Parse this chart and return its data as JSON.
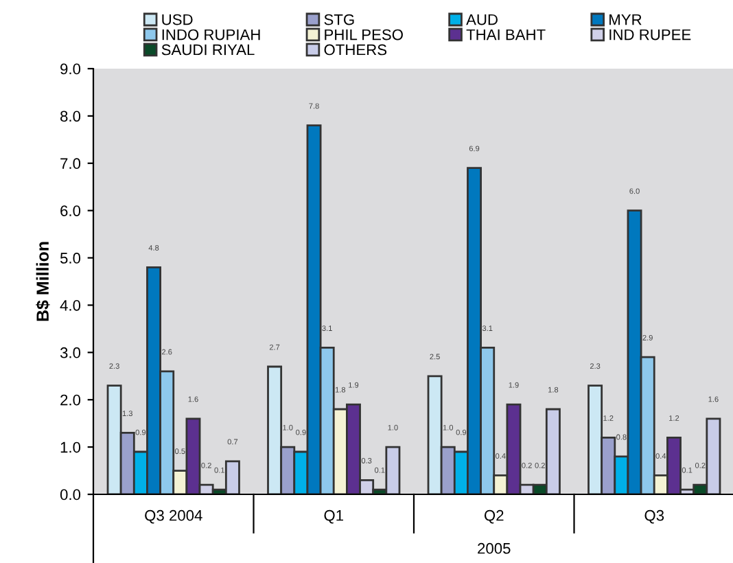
{
  "chart_data": {
    "type": "bar",
    "ylabel": "B$ Million",
    "categories": [
      "Q3 2004",
      "Q1",
      "Q2",
      "Q3"
    ],
    "series": [
      {
        "name": "USD",
        "color": "#cce8f4",
        "values": [
          2.3,
          2.7,
          2.5,
          2.3
        ],
        "value_labels": [
          "2.3",
          "2.7",
          "2.5",
          "2.3"
        ]
      },
      {
        "name": "STG",
        "color": "#9aa0cc",
        "values": [
          1.3,
          1.0,
          1.0,
          1.2
        ],
        "value_labels": [
          "1.3",
          "1.0",
          "1.0",
          "1.2"
        ]
      },
      {
        "name": "AUD",
        "color": "#00b0e8",
        "values": [
          0.9,
          0.9,
          0.9,
          0.8
        ],
        "value_labels": [
          "0.9",
          "0.9",
          "0.9",
          "0.8"
        ]
      },
      {
        "name": "MYR",
        "color": "#0078be",
        "values": [
          4.8,
          7.8,
          6.9,
          6.0
        ],
        "value_labels": [
          "4.8",
          "7.8",
          "6.9",
          "6.0"
        ]
      },
      {
        "name": "INDO RUPIAH",
        "color": "#8ec8ec",
        "values": [
          2.6,
          3.1,
          3.1,
          2.9
        ],
        "value_labels": [
          "2.6",
          "3.1",
          "3.1",
          "2.9"
        ]
      },
      {
        "name": "PHIL PESO",
        "color": "#f4f2d4",
        "values": [
          0.5,
          1.8,
          0.4,
          0.4
        ],
        "value_labels": [
          "0.5",
          "1.8",
          "0.4",
          "0.4"
        ]
      },
      {
        "name": "THAI BAHT",
        "color": "#5c3090",
        "values": [
          1.6,
          1.9,
          1.9,
          1.2
        ],
        "value_labels": [
          "1.6",
          "1.9",
          "1.9",
          "1.2"
        ]
      },
      {
        "name": "IND RUPEE",
        "color": "#d0d0e8",
        "values": [
          0.2,
          0.3,
          0.2,
          0.1
        ],
        "value_labels": [
          "0.2",
          "0.3",
          "0.2",
          "0.1"
        ]
      },
      {
        "name": "SAUDI RIYAL",
        "color": "#0a4a28",
        "values": [
          0.1,
          0.1,
          0.2,
          0.2
        ],
        "value_labels": [
          "0.1",
          "0.1",
          "0.2",
          "0.2"
        ]
      },
      {
        "name": "OTHERS",
        "color": "#c8cce8",
        "values": [
          0.7,
          1.0,
          1.8,
          1.6
        ],
        "value_labels": [
          "0.7",
          "1.0",
          "1.8",
          "1.6"
        ]
      }
    ],
    "ylim": [
      0,
      9
    ],
    "yticks": [
      {
        "value": 0,
        "label": "0.0"
      },
      {
        "value": 1,
        "label": "1.0"
      },
      {
        "value": 2,
        "label": "2.0"
      },
      {
        "value": 3,
        "label": "3.0"
      },
      {
        "value": 4,
        "label": "4.0"
      },
      {
        "value": 5,
        "label": "5.0"
      },
      {
        "value": 6,
        "label": "6.0"
      },
      {
        "value": 7,
        "label": "7.0"
      },
      {
        "value": 8,
        "label": "8.0"
      },
      {
        "value": 9,
        "label": "9.0"
      }
    ],
    "annotations": [
      "2005"
    ],
    "grid": false,
    "legend": "top"
  }
}
